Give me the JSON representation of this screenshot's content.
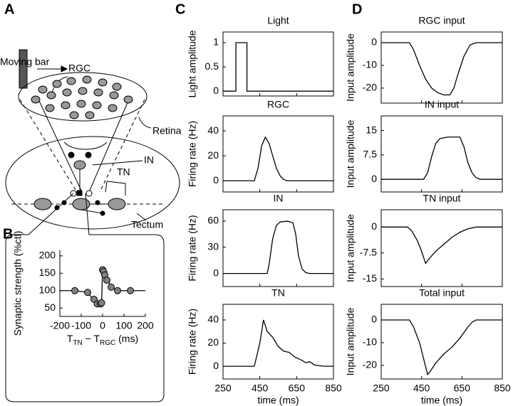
{
  "panels": [
    "A",
    "B",
    "C",
    "D"
  ],
  "diagram": {
    "labels": [
      "Moving bar",
      "RGC",
      "Retina",
      "IN",
      "TN",
      "Tectum"
    ]
  },
  "chart_data": [
    {
      "type": "scatter",
      "ylabel": "Synaptic strength (%ctl)",
      "xlabel": {
        "parts": [
          "T",
          "TN",
          " − T",
          "RGC",
          " (ms)"
        ]
      },
      "xlim": [
        -200,
        200
      ],
      "xticks": [
        -200,
        -100,
        0,
        100,
        200
      ],
      "ylim": [
        26,
        216
      ],
      "yticks": [
        50,
        100,
        150,
        200
      ],
      "series": [
        {
          "style": "line",
          "color": "#000000",
          "x": [
            -200,
            -130,
            -70,
            -40,
            -25,
            -5,
            0,
            10,
            40,
            70,
            200
          ],
          "values": [
            100,
            100,
            95,
            72,
            60,
            60,
            160,
            150,
            110,
            100,
            100
          ]
        },
        {
          "style": "markers",
          "color": "#808080",
          "x": [
            -130,
            -70,
            -40,
            -25,
            -10,
            -5,
            0,
            5,
            10,
            20,
            40,
            70,
            130
          ],
          "values": [
            100,
            95,
            75,
            62,
            62,
            65,
            160,
            155,
            145,
            130,
            110,
            100,
            100
          ]
        }
      ]
    },
    {
      "type": "line",
      "title": "Light",
      "ylabel": "Light amplitude",
      "color": "#000000",
      "xlim": [
        250,
        850
      ],
      "xticks": [
        250,
        450,
        650,
        850
      ],
      "ylim": [
        -0.1,
        1.22
      ],
      "yticks": [
        0,
        0.5,
        1
      ],
      "x": [
        250,
        320,
        320,
        380,
        380,
        850
      ],
      "values": [
        0,
        0,
        1,
        1,
        0,
        0
      ]
    },
    {
      "type": "line",
      "title": "RGC",
      "ylabel": "Firing rate (Hz)",
      "color": "#000000",
      "xlim": [
        250,
        850
      ],
      "xticks": [
        250,
        450,
        650,
        850
      ],
      "ylim": [
        -9,
        52
      ],
      "yticks": [
        0,
        20,
        40
      ],
      "x": [
        250,
        420,
        440,
        460,
        480,
        500,
        520,
        540,
        560,
        580,
        600,
        850
      ],
      "values": [
        0,
        0,
        10,
        28,
        35,
        30,
        20,
        10,
        4,
        1,
        0,
        0
      ]
    },
    {
      "type": "line",
      "title": "IN",
      "ylabel": "Firing rate (Hz)",
      "color": "#000000",
      "xlim": [
        250,
        850
      ],
      "xticks": [
        250,
        450,
        650,
        850
      ],
      "ylim": [
        -15,
        73
      ],
      "yticks": [
        0,
        30,
        60
      ],
      "x": [
        250,
        490,
        500,
        520,
        540,
        560,
        600,
        630,
        645,
        660,
        680,
        700,
        720,
        850
      ],
      "values": [
        0,
        0,
        10,
        40,
        55,
        59,
        60,
        58,
        45,
        20,
        5,
        1,
        0,
        0
      ]
    },
    {
      "type": "line",
      "title": "TN",
      "ylabel": "Firing rate (Hz)",
      "xlabel": "time (ms)",
      "color": "#000000",
      "xlim": [
        250,
        850
      ],
      "xticks": [
        250,
        450,
        650,
        850
      ],
      "ylim": [
        -11,
        53.5
      ],
      "yticks": [
        0,
        20,
        40
      ],
      "x": [
        250,
        420,
        450,
        470,
        490,
        520,
        550,
        580,
        610,
        640,
        680,
        700,
        720,
        750,
        800,
        850
      ],
      "values": [
        0,
        0,
        20,
        40,
        30,
        25,
        17,
        13,
        12,
        8,
        5,
        3,
        4,
        1,
        0,
        0
      ]
    },
    {
      "type": "line",
      "title": "RGC input",
      "ylabel": "Input amplitude",
      "color": "#000000",
      "xlim": [
        250,
        850
      ],
      "xticks": [
        250,
        450,
        650,
        850
      ],
      "ylim": [
        -26.6,
        4.7
      ],
      "yticks": [
        -20,
        -10,
        0
      ],
      "x": [
        250,
        390,
        410,
        440,
        470,
        500,
        530,
        560,
        590,
        610,
        630,
        660,
        690,
        720,
        850
      ],
      "values": [
        0,
        0,
        -3,
        -10,
        -16,
        -20,
        -22,
        -23,
        -23,
        -20,
        -14,
        -6,
        -1,
        0,
        0
      ]
    },
    {
      "type": "line",
      "title": "IN input",
      "ylabel": "Input amplitude",
      "color": "#000000",
      "xlim": [
        250,
        850
      ],
      "xticks": [
        250,
        450,
        650,
        850
      ],
      "ylim": [
        -3.9,
        19.5
      ],
      "yticks": [
        0,
        7.5,
        15
      ],
      "x": [
        250,
        460,
        480,
        500,
        520,
        540,
        580,
        640,
        660,
        680,
        700,
        720,
        740,
        850
      ],
      "values": [
        0,
        0,
        2,
        7,
        11,
        12.5,
        13,
        13,
        10,
        5,
        2,
        0.5,
        0,
        0
      ]
    },
    {
      "type": "line",
      "title": "TN input",
      "ylabel": "Input amplitude",
      "color": "#000000",
      "xlim": [
        250,
        850
      ],
      "xticks": [
        250,
        450,
        650,
        850
      ],
      "ylim": [
        -17.2,
        5
      ],
      "yticks": [
        -15,
        -7.5,
        0
      ],
      "x": [
        250,
        380,
        400,
        430,
        450,
        470,
        490,
        520,
        560,
        600,
        640,
        680,
        720,
        850
      ],
      "values": [
        0,
        0,
        -1,
        -4,
        -7,
        -10.5,
        -9,
        -7,
        -5,
        -3,
        -1.5,
        -0.5,
        0,
        0
      ]
    },
    {
      "type": "line",
      "title": "Total input",
      "ylabel": "Input amplitude",
      "xlabel": "time (ms)",
      "color": "#000000",
      "xlim": [
        250,
        850
      ],
      "xticks": [
        250,
        450,
        650,
        850
      ],
      "ylim": [
        -26,
        6.9
      ],
      "yticks": [
        -20,
        -10,
        0
      ],
      "x": [
        250,
        390,
        410,
        440,
        460,
        480,
        490,
        520,
        560,
        600,
        640,
        680,
        700,
        720,
        850
      ],
      "values": [
        0,
        0,
        -3,
        -10,
        -17,
        -24,
        -23,
        -19,
        -15,
        -12,
        -8,
        -3,
        -1,
        0,
        0
      ]
    }
  ]
}
